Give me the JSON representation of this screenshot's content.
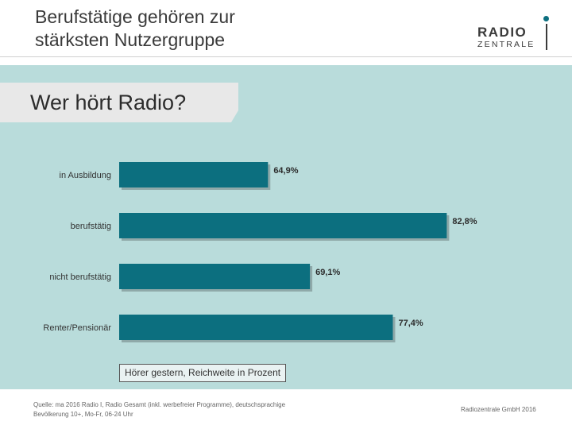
{
  "header": {
    "title_line1": "Berufstätige gehören zur",
    "title_line2": "stärksten Nutzergruppe",
    "logo_line1": "RADIO",
    "logo_line2": "ZENTRALE"
  },
  "chart_data": {
    "type": "bar",
    "orientation": "horizontal",
    "title": "Wer hört Radio?",
    "categories": [
      "in Ausbildung",
      "berufstätig",
      "nicht berufstätig",
      "Renter/Pensionär"
    ],
    "values": [
      64.9,
      82.8,
      69.1,
      77.4
    ],
    "value_labels": [
      "64,9%",
      "82,8%",
      "69,1%",
      "77,4%"
    ],
    "unit": "%",
    "xlim": [
      50,
      85
    ],
    "note": "Hörer gestern, Reichweite in Prozent",
    "colors": {
      "bar": "#0c6f7f",
      "shadow": "#8fa9a9",
      "panel": "#b9dcdb"
    }
  },
  "footer": {
    "source_line1": "Quelle: ma 2016 Radio I, Radio Gesamt (inkl. werbefreier Programme), deutschsprachige",
    "source_line2": "Bevölkerung 10+, Mo-Fr, 06-24 Uhr",
    "copyright": "Radiozentrale GmbH 2016"
  }
}
